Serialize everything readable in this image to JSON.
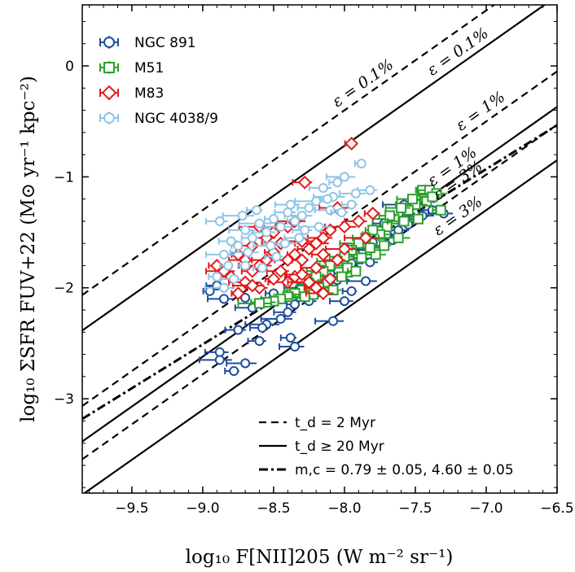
{
  "chart_data": {
    "type": "scatter",
    "xlabel": "log₁₀ F[NII]205 (W m⁻² sr⁻¹)",
    "ylabel": "log₁₀ ΣSFR FUV+22 (M⊙ yr⁻¹ kpc⁻²)",
    "xlim": [
      -9.85,
      -6.5
    ],
    "ylim": [
      -3.85,
      0.55
    ],
    "xticks": [
      {
        "value": -9.5,
        "label": "−9.5"
      },
      {
        "value": -9.0,
        "label": "−9.0"
      },
      {
        "value": -8.5,
        "label": "−8.5"
      },
      {
        "value": -8.0,
        "label": "−8.0"
      },
      {
        "value": -7.5,
        "label": "−7.5"
      },
      {
        "value": -7.0,
        "label": "−7.0"
      },
      {
        "value": -6.5,
        "label": "−6.5"
      }
    ],
    "yticks": [
      {
        "value": 0,
        "label": "0"
      },
      {
        "value": -1,
        "label": "−1"
      },
      {
        "value": -2,
        "label": "−2"
      },
      {
        "value": -3,
        "label": "−3"
      }
    ],
    "legend_position": "top-left",
    "grid": false,
    "series": [
      {
        "name": "NGC 891",
        "marker": "circle",
        "color": "#1f4e9c",
        "points": [
          [
            -7.8,
            -1.59
          ],
          [
            -7.7,
            -1.52
          ],
          [
            -7.62,
            -1.48
          ],
          [
            -7.55,
            -1.43
          ],
          [
            -7.5,
            -1.38
          ],
          [
            -7.45,
            -1.35
          ],
          [
            -7.38,
            -1.3
          ],
          [
            -7.3,
            -1.33
          ],
          [
            -7.58,
            -1.25
          ],
          [
            -7.72,
            -1.42
          ],
          [
            -7.78,
            -1.66
          ],
          [
            -7.66,
            -1.57
          ],
          [
            -7.82,
            -1.77
          ],
          [
            -7.85,
            -1.94
          ],
          [
            -7.95,
            -2.03
          ],
          [
            -8.0,
            -2.12
          ],
          [
            -8.05,
            -1.93
          ],
          [
            -8.1,
            -1.87
          ],
          [
            -8.15,
            -1.97
          ],
          [
            -8.2,
            -2.05
          ],
          [
            -8.25,
            -2.12
          ],
          [
            -8.3,
            -2.0
          ],
          [
            -8.35,
            -2.15
          ],
          [
            -8.4,
            -2.22
          ],
          [
            -8.45,
            -2.28
          ],
          [
            -8.38,
            -2.45
          ],
          [
            -8.35,
            -2.53
          ],
          [
            -8.55,
            -2.33
          ],
          [
            -8.6,
            -2.48
          ],
          [
            -8.65,
            -2.18
          ],
          [
            -8.7,
            -2.09
          ],
          [
            -8.75,
            -2.38
          ],
          [
            -8.7,
            -2.68
          ],
          [
            -8.78,
            -2.75
          ],
          [
            -8.88,
            -2.58
          ],
          [
            -8.88,
            -2.65
          ],
          [
            -8.9,
            -1.98
          ],
          [
            -8.85,
            -2.1
          ],
          [
            -8.95,
            -2.03
          ],
          [
            -8.58,
            -2.36
          ],
          [
            -8.08,
            -2.3
          ],
          [
            -8.5,
            -2.05
          ],
          [
            -7.88,
            -1.62
          ],
          [
            -7.95,
            -1.78
          ],
          [
            -7.75,
            -1.48
          ],
          [
            -7.92,
            -1.7
          ]
        ]
      },
      {
        "name": "M51",
        "marker": "square",
        "color": "#2ca02c",
        "points": [
          [
            -7.45,
            -1.12
          ],
          [
            -7.4,
            -1.12
          ],
          [
            -7.35,
            -1.15
          ],
          [
            -7.32,
            -1.3
          ],
          [
            -7.42,
            -1.22
          ],
          [
            -7.5,
            -1.25
          ],
          [
            -7.55,
            -1.3
          ],
          [
            -7.6,
            -1.28
          ],
          [
            -7.65,
            -1.38
          ],
          [
            -7.7,
            -1.45
          ],
          [
            -7.75,
            -1.52
          ],
          [
            -7.8,
            -1.48
          ],
          [
            -7.85,
            -1.55
          ],
          [
            -7.9,
            -1.6
          ],
          [
            -7.95,
            -1.66
          ],
          [
            -8.0,
            -1.72
          ],
          [
            -8.05,
            -1.76
          ],
          [
            -8.1,
            -1.8
          ],
          [
            -8.15,
            -1.85
          ],
          [
            -8.2,
            -1.9
          ],
          [
            -8.25,
            -1.96
          ],
          [
            -8.3,
            -2.02
          ],
          [
            -8.35,
            -2.05
          ],
          [
            -8.4,
            -2.08
          ],
          [
            -8.45,
            -2.1
          ],
          [
            -8.5,
            -2.12
          ],
          [
            -8.55,
            -2.13
          ],
          [
            -8.6,
            -2.14
          ],
          [
            -7.72,
            -1.62
          ],
          [
            -7.78,
            -1.7
          ],
          [
            -7.88,
            -1.73
          ],
          [
            -7.98,
            -1.82
          ],
          [
            -8.02,
            -1.9
          ],
          [
            -8.12,
            -1.95
          ],
          [
            -8.18,
            -2.0
          ],
          [
            -8.22,
            -2.06
          ],
          [
            -7.68,
            -1.35
          ],
          [
            -7.58,
            -1.4
          ],
          [
            -7.48,
            -1.38
          ],
          [
            -7.38,
            -1.18
          ],
          [
            -7.82,
            -1.64
          ],
          [
            -7.92,
            -1.85
          ],
          [
            -8.08,
            -2.02
          ],
          [
            -7.62,
            -1.55
          ],
          [
            -8.28,
            -2.08
          ],
          [
            -7.52,
            -1.2
          ]
        ]
      },
      {
        "name": "M83",
        "marker": "diamond",
        "color": "#e41a1c",
        "points": [
          [
            -7.95,
            -0.7
          ],
          [
            -8.28,
            -1.05
          ],
          [
            -8.05,
            -1.28
          ],
          [
            -7.8,
            -1.33
          ],
          [
            -7.9,
            -1.4
          ],
          [
            -8.0,
            -1.45
          ],
          [
            -8.1,
            -1.48
          ],
          [
            -8.15,
            -1.55
          ],
          [
            -8.2,
            -1.6
          ],
          [
            -8.25,
            -1.65
          ],
          [
            -8.3,
            -1.58
          ],
          [
            -8.35,
            -1.7
          ],
          [
            -8.4,
            -1.75
          ],
          [
            -8.45,
            -1.6
          ],
          [
            -8.5,
            -1.68
          ],
          [
            -8.55,
            -1.75
          ],
          [
            -8.6,
            -1.8
          ],
          [
            -8.65,
            -1.85
          ],
          [
            -8.7,
            -1.95
          ],
          [
            -8.75,
            -2.05
          ],
          [
            -8.8,
            -1.9
          ],
          [
            -8.85,
            -1.85
          ],
          [
            -8.9,
            -1.8
          ],
          [
            -8.45,
            -1.85
          ],
          [
            -8.4,
            -1.95
          ],
          [
            -8.35,
            -1.9
          ],
          [
            -8.3,
            -1.88
          ],
          [
            -8.25,
            -1.95
          ],
          [
            -8.2,
            -2.0
          ],
          [
            -8.15,
            -2.05
          ],
          [
            -8.1,
            -1.92
          ],
          [
            -8.05,
            -1.75
          ],
          [
            -8.0,
            -1.65
          ],
          [
            -8.5,
            -1.5
          ],
          [
            -8.55,
            -1.55
          ],
          [
            -8.6,
            -1.45
          ],
          [
            -8.65,
            -1.62
          ],
          [
            -8.7,
            -1.75
          ],
          [
            -8.75,
            -1.7
          ],
          [
            -8.4,
            -1.45
          ],
          [
            -8.35,
            -1.4
          ],
          [
            -8.5,
            -1.92
          ],
          [
            -8.6,
            -2.0
          ],
          [
            -8.65,
            -1.98
          ],
          [
            -8.3,
            -1.75
          ],
          [
            -8.2,
            -1.82
          ],
          [
            -7.85,
            -1.55
          ],
          [
            -8.15,
            -1.7
          ]
        ]
      },
      {
        "name": "NGC 4038/9",
        "marker": "circle",
        "color": "#8ec5e6",
        "points": [
          [
            -7.88,
            -0.88
          ],
          [
            -7.82,
            -1.12
          ],
          [
            -8.0,
            -1.0
          ],
          [
            -8.05,
            -1.05
          ],
          [
            -8.15,
            -1.1
          ],
          [
            -8.08,
            -1.18
          ],
          [
            -7.95,
            -1.25
          ],
          [
            -8.1,
            -1.3
          ],
          [
            -8.2,
            -1.22
          ],
          [
            -8.25,
            -1.28
          ],
          [
            -8.3,
            -1.35
          ],
          [
            -8.35,
            -1.4
          ],
          [
            -8.4,
            -1.32
          ],
          [
            -8.45,
            -1.45
          ],
          [
            -8.5,
            -1.38
          ],
          [
            -8.55,
            -1.5
          ],
          [
            -8.6,
            -1.42
          ],
          [
            -8.65,
            -1.55
          ],
          [
            -8.7,
            -1.48
          ],
          [
            -8.75,
            -1.62
          ],
          [
            -8.8,
            -1.58
          ],
          [
            -8.85,
            -1.7
          ],
          [
            -8.9,
            -1.9
          ],
          [
            -8.88,
            -1.4
          ],
          [
            -8.72,
            -1.35
          ],
          [
            -8.62,
            -1.3
          ],
          [
            -8.38,
            -1.25
          ],
          [
            -8.42,
            -1.6
          ],
          [
            -8.48,
            -1.72
          ],
          [
            -8.52,
            -1.62
          ],
          [
            -8.7,
            -1.8
          ],
          [
            -8.78,
            -1.92
          ],
          [
            -8.85,
            -2.0
          ],
          [
            -8.58,
            -1.82
          ],
          [
            -8.32,
            -1.55
          ],
          [
            -8.18,
            -1.45
          ],
          [
            -8.02,
            -1.32
          ],
          [
            -7.92,
            -1.15
          ],
          [
            -8.12,
            -1.2
          ],
          [
            -8.28,
            -1.48
          ],
          [
            -8.68,
            -1.68
          ],
          [
            -8.82,
            -1.8
          ]
        ]
      }
    ],
    "model_lines": [
      {
        "style": "dashed",
        "label": "ε = 0.1%",
        "intercept": 6.8,
        "slope": 0.9
      },
      {
        "style": "dashed",
        "label": "ε = 1%",
        "intercept": 5.8,
        "slope": 0.9
      },
      {
        "style": "dashed",
        "label": "ε = 3%",
        "intercept": 5.32,
        "slope": 0.9
      },
      {
        "style": "solid",
        "label": "ε = 0.1%",
        "intercept": 6.48,
        "slope": 0.9
      },
      {
        "style": "solid",
        "label": "ε = 1%",
        "intercept": 5.48,
        "slope": 0.9
      },
      {
        "style": "solid",
        "label": "ε = 3%",
        "intercept": 5.0,
        "slope": 0.9
      },
      {
        "style": "dashdot",
        "label": "",
        "intercept": 4.6,
        "slope": 0.79
      }
    ],
    "line_legend": [
      {
        "style": "dashed",
        "text": "t_d = 2 Myr"
      },
      {
        "style": "solid",
        "text": "t_d ≥ 20 Myr"
      },
      {
        "style": "dashdot",
        "text": "m,c = 0.79 ± 0.05, 4.60 ± 0.05"
      }
    ]
  }
}
